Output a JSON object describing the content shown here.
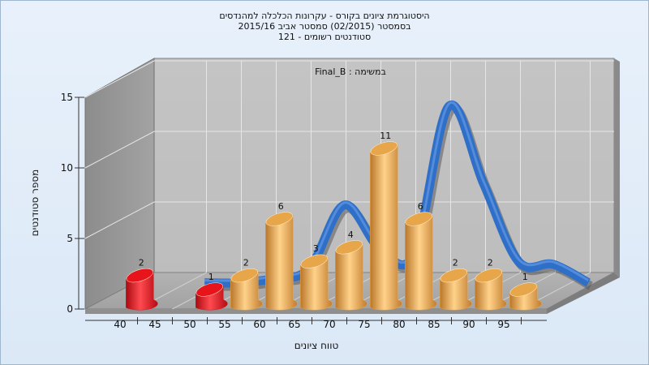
{
  "titles": [
    "היסטוגרמת ציונים בקורס - עקרונות הכלכלה למהנדסים",
    "בסמסטר  (02/2015)  סמסטר אביב 2015/16",
    "סטודנטים רשומים - 121"
  ],
  "chart_data": {
    "type": "bar",
    "annotation": "במשימה : Final_B",
    "xlabel": "טווח ציונים",
    "ylabel": "מספר סטודנטים",
    "ylim": [
      0,
      15
    ],
    "yticks": [
      0,
      5,
      10,
      15
    ],
    "x_tick_labels": [
      "40",
      "45",
      "50",
      "55",
      "60",
      "65",
      "70",
      "75",
      "80",
      "85",
      "90",
      "95"
    ],
    "bars": [
      {
        "x": 40,
        "value": 2,
        "color": "#e8141b"
      },
      {
        "x": 50,
        "value": 1,
        "color": "#e8141b"
      },
      {
        "x": 55,
        "value": 2,
        "color": "#e8a64a"
      },
      {
        "x": 60,
        "value": 6,
        "color": "#e8a64a"
      },
      {
        "x": 65,
        "value": 3,
        "color": "#e8a64a"
      },
      {
        "x": 70,
        "value": 4,
        "color": "#e8a64a"
      },
      {
        "x": 75,
        "value": 11,
        "color": "#e8a64a"
      },
      {
        "x": 80,
        "value": 6,
        "color": "#e8a64a"
      },
      {
        "x": 85,
        "value": 2,
        "color": "#e8a64a"
      },
      {
        "x": 90,
        "value": 2,
        "color": "#e8a64a"
      },
      {
        "x": 95,
        "value": 1,
        "color": "#e8a64a"
      }
    ],
    "line_series": {
      "color": "#2f6fc8",
      "x": [
        45,
        50,
        55,
        60,
        65,
        70,
        75,
        80,
        85,
        90,
        95,
        100
      ],
      "values": [
        0,
        0,
        0.3,
        1,
        5.5,
        2.5,
        2,
        12.5,
        7,
        1.5,
        1.3,
        0
      ]
    },
    "grid": true
  }
}
